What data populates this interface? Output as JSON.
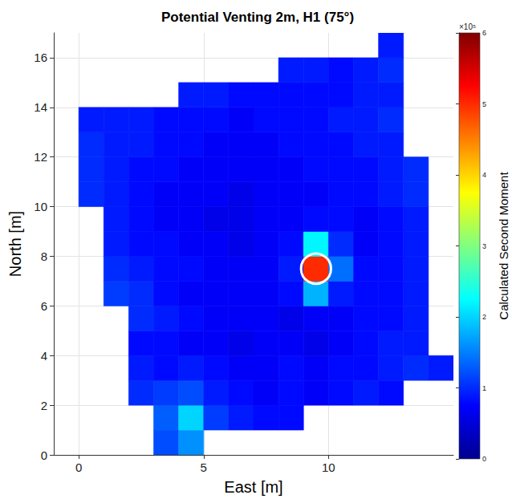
{
  "chart_data": {
    "type": "heatmap",
    "title": "Potential Venting 2m, H1 (75°)",
    "x_label": "East [m]",
    "y_label": "North [m]",
    "x": [
      -0.5,
      0.5,
      1.5,
      2.5,
      3.5,
      4.5,
      5.5,
      6.5,
      7.5,
      8.5,
      9.5,
      10.5,
      11.5,
      12.5,
      13.5,
      14.5
    ],
    "y": [
      0.5,
      1.5,
      2.5,
      3.5,
      4.5,
      5.5,
      6.5,
      7.5,
      8.5,
      9.5,
      10.5,
      11.5,
      12.5,
      13.5,
      14.5,
      15.5,
      16.5
    ],
    "z": [
      [
        null,
        null,
        null,
        null,
        1.2,
        1.6,
        null,
        null,
        null,
        null,
        null,
        null,
        null,
        null,
        null,
        null
      ],
      [
        null,
        null,
        null,
        null,
        1.3,
        2.0,
        1.1,
        0.9,
        0.8,
        0.8,
        null,
        null,
        null,
        null,
        null,
        null
      ],
      [
        null,
        null,
        null,
        1.0,
        1.1,
        1.2,
        0.9,
        0.8,
        0.7,
        0.8,
        0.7,
        0.8,
        0.9,
        0.8,
        null,
        null
      ],
      [
        null,
        null,
        null,
        0.9,
        0.8,
        0.9,
        0.8,
        0.7,
        0.7,
        0.8,
        0.7,
        0.8,
        0.8,
        0.9,
        1.0,
        0.9
      ],
      [
        null,
        null,
        null,
        0.8,
        0.8,
        0.7,
        0.7,
        0.6,
        0.7,
        0.7,
        0.6,
        0.7,
        0.8,
        0.9,
        0.9,
        null
      ],
      [
        null,
        null,
        null,
        1.0,
        0.9,
        0.8,
        0.7,
        0.7,
        0.7,
        0.6,
        0.7,
        0.7,
        0.8,
        0.8,
        0.9,
        null
      ],
      [
        null,
        null,
        1.1,
        1.0,
        0.8,
        0.7,
        0.7,
        0.7,
        0.7,
        0.8,
        1.8,
        0.9,
        0.8,
        0.8,
        0.9,
        null
      ],
      [
        null,
        null,
        1.0,
        0.9,
        0.8,
        0.8,
        0.7,
        0.7,
        0.7,
        0.9,
        5.0,
        1.4,
        0.8,
        0.8,
        0.9,
        null
      ],
      [
        null,
        null,
        0.9,
        0.8,
        0.8,
        0.7,
        0.7,
        0.6,
        0.7,
        0.8,
        2.2,
        1.0,
        0.7,
        0.8,
        0.9,
        null
      ],
      [
        null,
        null,
        0.9,
        0.8,
        0.7,
        0.7,
        0.6,
        0.6,
        0.7,
        0.7,
        0.8,
        0.8,
        0.7,
        0.8,
        0.9,
        null
      ],
      [
        null,
        1.0,
        0.9,
        0.8,
        0.7,
        0.7,
        0.7,
        0.6,
        0.7,
        0.7,
        0.7,
        0.8,
        0.8,
        0.9,
        1.0,
        null
      ],
      [
        null,
        1.0,
        0.9,
        0.8,
        0.8,
        0.7,
        0.7,
        0.7,
        0.7,
        0.7,
        0.8,
        0.8,
        0.8,
        0.9,
        1.0,
        null
      ],
      [
        null,
        1.0,
        0.9,
        0.9,
        0.8,
        0.8,
        0.7,
        0.7,
        0.7,
        0.8,
        0.8,
        0.8,
        0.9,
        0.9,
        null,
        null
      ],
      [
        null,
        0.9,
        0.9,
        0.9,
        0.8,
        0.8,
        0.8,
        0.7,
        0.8,
        0.8,
        0.8,
        0.9,
        0.9,
        1.0,
        null,
        null
      ],
      [
        null,
        null,
        null,
        null,
        null,
        0.9,
        0.9,
        0.8,
        0.8,
        0.8,
        0.8,
        0.8,
        0.9,
        0.9,
        null,
        null
      ],
      [
        null,
        null,
        null,
        null,
        null,
        null,
        null,
        null,
        null,
        0.9,
        0.9,
        0.8,
        0.9,
        1.0,
        null,
        null
      ],
      [
        null,
        null,
        null,
        null,
        null,
        null,
        null,
        null,
        null,
        null,
        null,
        null,
        null,
        0.9,
        null,
        null
      ]
    ],
    "xlim": [
      -1,
      15
    ],
    "ylim": [
      0,
      17
    ],
    "xticks": [
      0,
      5,
      10
    ],
    "yticks": [
      0,
      2,
      4,
      6,
      8,
      10,
      12,
      14,
      16
    ],
    "grid": true,
    "colorbar": {
      "label": "Calculated Second Moment",
      "range": [
        0,
        6
      ],
      "ticks": [
        0,
        1,
        2,
        3,
        4,
        5,
        6
      ],
      "exponent": "×10⁵"
    },
    "highlight": {
      "x": 9.5,
      "y": 7.5,
      "radius": 0.6
    }
  }
}
